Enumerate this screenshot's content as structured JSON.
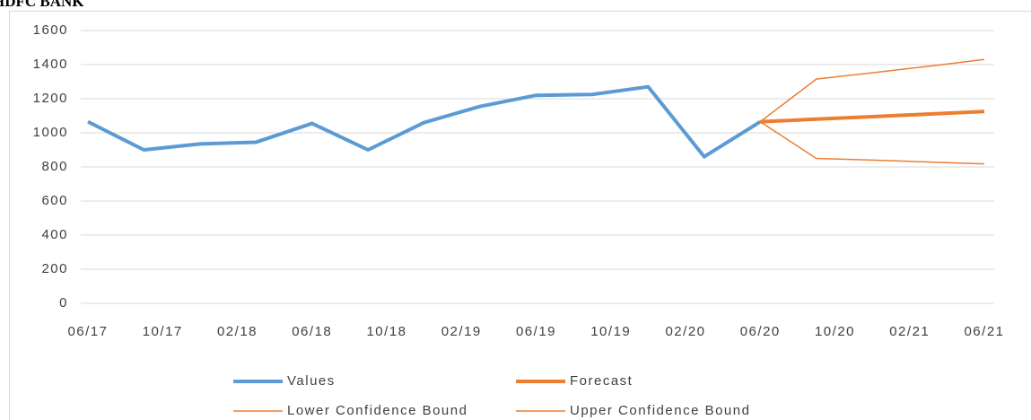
{
  "chart_data": {
    "type": "line",
    "title": "HDFC BANK",
    "x": [
      "06/17",
      "09/17",
      "12/17",
      "03/18",
      "06/18",
      "09/18",
      "12/18",
      "03/19",
      "06/19",
      "09/19",
      "12/19",
      "03/20",
      "06/20",
      "09/20",
      "12/20",
      "03/21",
      "06/21"
    ],
    "series": [
      {
        "name": "Values",
        "color": "#5b9bd5",
        "width": 4,
        "values": [
          1065,
          900,
          935,
          945,
          1055,
          900,
          1060,
          1155,
          1220,
          1225,
          1270,
          860,
          1065,
          null,
          null,
          null,
          null
        ]
      },
      {
        "name": "Forecast",
        "color": "#ed7d31",
        "width": 4,
        "values": [
          null,
          null,
          null,
          null,
          null,
          null,
          null,
          null,
          null,
          null,
          null,
          null,
          1065,
          1080,
          1095,
          1110,
          1125
        ]
      },
      {
        "name": "Lower Confidence Bound",
        "color": "#ed7d31",
        "width": 1.5,
        "values": [
          null,
          null,
          null,
          null,
          null,
          null,
          null,
          null,
          null,
          null,
          null,
          null,
          1065,
          850,
          840,
          829,
          818
        ]
      },
      {
        "name": "Upper Confidence Bound",
        "color": "#ed7d31",
        "width": 1.5,
        "values": [
          null,
          null,
          null,
          null,
          null,
          null,
          null,
          null,
          null,
          null,
          null,
          null,
          1065,
          1315,
          1352,
          1390,
          1430
        ]
      }
    ],
    "xticks": [
      "06/17",
      "10/17",
      "02/18",
      "06/18",
      "10/18",
      "02/19",
      "06/19",
      "10/19",
      "02/20",
      "06/20",
      "10/20",
      "02/21",
      "06/21"
    ],
    "ylim": [
      0,
      1600
    ],
    "yticks": [
      0,
      200,
      400,
      600,
      800,
      1000,
      1200,
      1400,
      1600
    ],
    "grid": true,
    "legend": "bottom"
  }
}
